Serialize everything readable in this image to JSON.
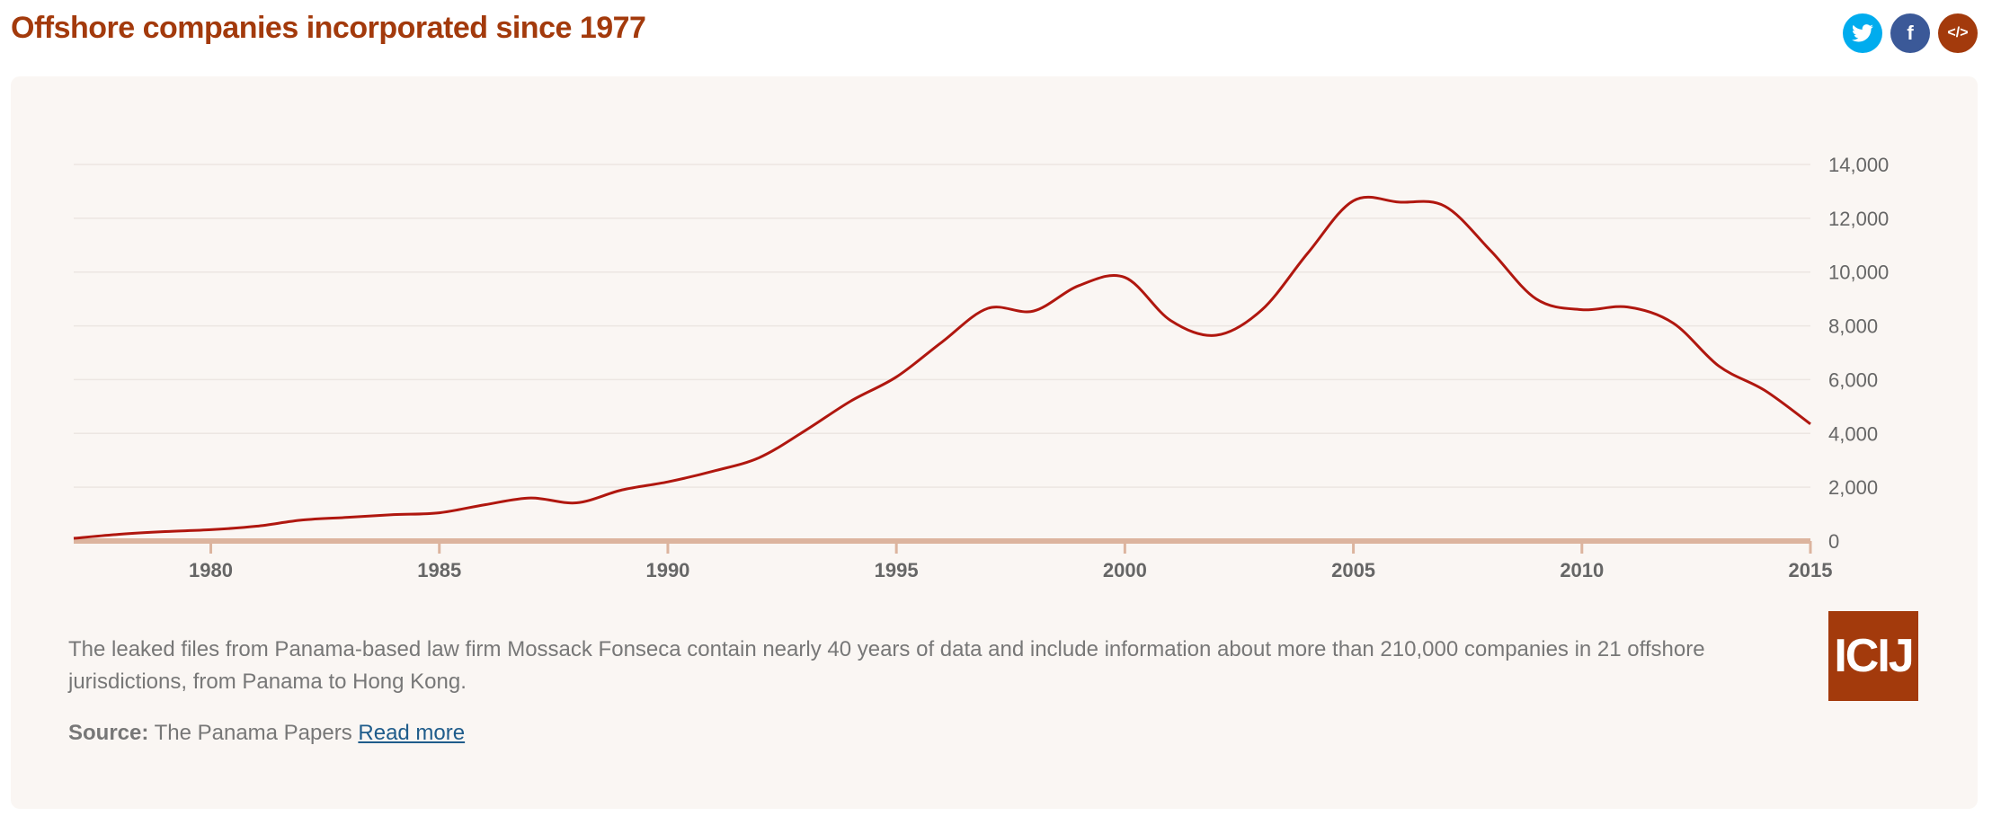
{
  "title": "Offshore companies incorporated since 1977",
  "social": {
    "twitter": "twitter-icon",
    "facebook": "facebook-icon",
    "embed": "embed-code-icon",
    "facebook_glyph": "f",
    "embed_glyph": "</>"
  },
  "description": "The leaked files from Panama-based law firm Mossack Fonseca contain nearly 40 years of data and include information about more than 210,000 companies in 21 offshore jurisdictions, from Panama to Hong Kong.",
  "source": {
    "label": "Source:",
    "text": "The Panama Papers",
    "link": "Read more"
  },
  "logo": "ICIJ",
  "colors": {
    "line": "#b0170f",
    "axis": "#dcb49e",
    "accent": "#a33a0c"
  },
  "chart_data": {
    "type": "line",
    "title": "Offshore companies incorporated since 1977",
    "xlabel": "",
    "ylabel": "",
    "xlim": [
      1977,
      2015
    ],
    "ylim": [
      0,
      14000
    ],
    "xticks": [
      "1980",
      "1985",
      "1990",
      "1995",
      "2000",
      "2005",
      "2010",
      "2015"
    ],
    "yticks": [
      "0",
      "2,000",
      "4,000",
      "6,000",
      "8,000",
      "10,000",
      "12,000",
      "14,000"
    ],
    "grid": true,
    "x": [
      1977,
      1978,
      1979,
      1980,
      1981,
      1982,
      1983,
      1984,
      1985,
      1986,
      1987,
      1988,
      1989,
      1990,
      1991,
      1992,
      1993,
      1994,
      1995,
      1996,
      1997,
      1998,
      1999,
      2000,
      2001,
      2002,
      2003,
      2004,
      2005,
      2006,
      2007,
      2008,
      2009,
      2010,
      2011,
      2012,
      2013,
      2014,
      2015
    ],
    "series": [
      {
        "name": "Companies incorporated",
        "values": [
          100,
          250,
          350,
          420,
          550,
          780,
          880,
          980,
          1050,
          1350,
          1600,
          1420,
          1900,
          2200,
          2600,
          3100,
          4100,
          5200,
          6100,
          7400,
          8650,
          8550,
          9500,
          9800,
          8200,
          7650,
          8600,
          10700,
          12650,
          12600,
          12450,
          10800,
          9000,
          8600,
          8700,
          8100,
          6500,
          5600,
          4350
        ]
      }
    ]
  }
}
